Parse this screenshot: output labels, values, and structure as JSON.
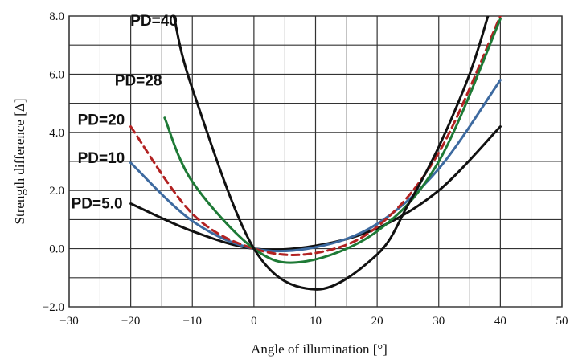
{
  "chart_data": {
    "type": "line",
    "title": "",
    "xlabel": "Angle of  illumination [°]",
    "ylabel": "Strength difference [Δ]",
    "xlim": [
      -30,
      50
    ],
    "ylim": [
      -2.0,
      8.0
    ],
    "x_ticks": [
      "−30",
      "−20",
      "−10",
      "0",
      "10",
      "20",
      "30",
      "40",
      "50"
    ],
    "y_ticks": [
      "−2.0",
      "0.0",
      "2.0",
      "4.0",
      "6.0",
      "8.0"
    ],
    "grid": true,
    "legend": "none",
    "series": [
      {
        "name": "PD=5.0",
        "color": "#111111",
        "dash": "solid",
        "points": [
          [
            -20,
            1.55
          ],
          [
            -10,
            0.6
          ],
          [
            0,
            0.0
          ],
          [
            10,
            0.1
          ],
          [
            20,
            0.7
          ],
          [
            30,
            2.0
          ],
          [
            40,
            4.2
          ]
        ]
      },
      {
        "name": "PD=10",
        "color": "#3d6aa0",
        "dash": "solid",
        "points": [
          [
            -20,
            2.95
          ],
          [
            -10,
            0.95
          ],
          [
            0,
            0.0
          ],
          [
            10,
            0.05
          ],
          [
            20,
            0.85
          ],
          [
            30,
            2.75
          ],
          [
            40,
            5.8
          ]
        ]
      },
      {
        "name": "PD=20",
        "color": "#b22222",
        "dash": "dashed",
        "points": [
          [
            -20,
            4.2
          ],
          [
            -10,
            1.2
          ],
          [
            0,
            0.0
          ],
          [
            10,
            -0.15
          ],
          [
            20,
            0.75
          ],
          [
            30,
            3.3
          ],
          [
            40,
            8.0
          ]
        ]
      },
      {
        "name": "PD=28",
        "color": "#1e7a36",
        "dash": "solid",
        "points": [
          [
            -14.5,
            4.5
          ],
          [
            -10,
            2.3
          ],
          [
            0,
            0.0
          ],
          [
            8,
            -0.45
          ],
          [
            20,
            0.6
          ],
          [
            30,
            3.0
          ],
          [
            40,
            7.9
          ]
        ]
      },
      {
        "name": "PD=40",
        "color": "#111111",
        "dash": "solid",
        "points": [
          [
            -13,
            8.0
          ],
          [
            -10,
            5.5
          ],
          [
            0,
            0.0
          ],
          [
            10,
            -1.4
          ],
          [
            20,
            -0.2
          ],
          [
            25,
            1.5
          ],
          [
            30,
            3.5
          ],
          [
            35,
            6.0
          ],
          [
            38,
            8.0
          ]
        ]
      }
    ]
  }
}
